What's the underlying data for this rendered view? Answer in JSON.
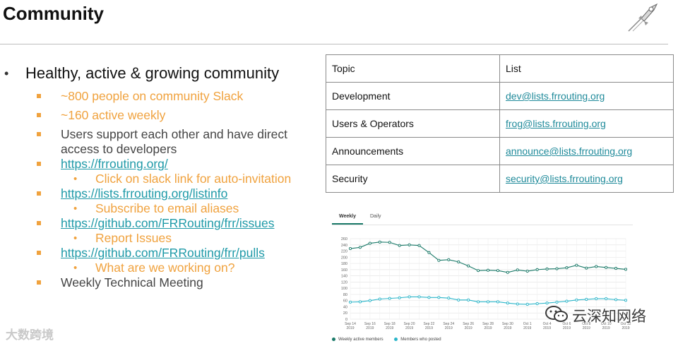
{
  "slide": {
    "title": "Community"
  },
  "bullets": {
    "main": "Healthy, active & growing community",
    "slack_people": "~800 people on community Slack",
    "active_weekly": "~160 active weekly",
    "support": "Users support each other and have direct access to developers",
    "site_link": "https://frrouting.org/",
    "site_sub": "Click on slack link for auto-invitation",
    "listinfo_link": "https://lists.frrouting.org/listinfo",
    "listinfo_sub": "Subscribe to email aliases",
    "issues_link": "https://github.com/FRRouting/frr/issues",
    "issues_sub": "Report Issues",
    "pulls_link": "https://github.com/FRRouting/frr/pulls",
    "pulls_sub": "What are we working on?",
    "meeting": "Weekly Technical Meeting"
  },
  "mailing_table": {
    "headers": [
      "Topic",
      "List"
    ],
    "rows": [
      {
        "topic": "Development",
        "list": "dev@lists.frrouting.org"
      },
      {
        "topic": "Users & Operators",
        "list": "frog@lists.frrouting.org"
      },
      {
        "topic": "Announcements",
        "list": "announce@lists.frrouting.org"
      },
      {
        "topic": "Security",
        "list": "security@lists.frrouting.org"
      }
    ]
  },
  "chart_tabs": {
    "weekly": "Weekly",
    "daily": "Daily"
  },
  "chart_data": {
    "type": "line",
    "x": [
      "Sep 14 2019",
      "Sep 15",
      "Sep 16 2019",
      "Sep 17",
      "Sep 18 2019",
      "Sep 19",
      "Sep 20 2019",
      "Sep 21",
      "Sep 22 2019",
      "Sep 23",
      "Sep 24 2019",
      "Sep 25",
      "Sep 26 2019",
      "Sep 27",
      "Sep 28 2019",
      "Sep 29",
      "Sep 30 2019",
      "Oct 1",
      "Oct 1 2019",
      "Oct 2",
      "Oct 4 2019",
      "Oct 5",
      "Oct 6 2019",
      "Oct 7",
      "Oct 8 2019",
      "Oct 9",
      "Oct 10 2019",
      "Oct 11",
      "Oct 12 2019"
    ],
    "x_tick_labels": [
      [
        "Sep 14",
        "2019"
      ],
      [
        "Sep 16",
        "2019"
      ],
      [
        "Sep 18",
        "2019"
      ],
      [
        "Sep 20",
        "2019"
      ],
      [
        "Sep 22",
        "2019"
      ],
      [
        "Sep 24",
        "2019"
      ],
      [
        "Sep 26",
        "2019"
      ],
      [
        "Sep 28",
        "2019"
      ],
      [
        "Sep 30",
        "2019"
      ],
      [
        "Oct 1",
        "2019"
      ],
      [
        "Oct 4",
        "2019"
      ],
      [
        "Oct 6",
        "2019"
      ],
      [
        "Oct 8",
        "2019"
      ],
      [
        "Oct 10",
        "2019"
      ],
      [
        "Oct 12",
        "2019"
      ]
    ],
    "y_ticks": [
      0,
      20,
      40,
      60,
      80,
      100,
      120,
      140,
      160,
      180,
      200,
      220,
      240,
      260
    ],
    "ylim": [
      0,
      260
    ],
    "grid": true,
    "legend_position": "bottom-left",
    "series": [
      {
        "name": "Weekly active members",
        "color": "#1b7a69",
        "values": [
          228,
          232,
          245,
          249,
          248,
          238,
          240,
          238,
          215,
          190,
          192,
          185,
          172,
          157,
          158,
          157,
          151,
          159,
          155,
          160,
          162,
          163,
          166,
          174,
          165,
          170,
          167,
          164,
          161
        ]
      },
      {
        "name": "Members who posted",
        "color": "#2bb5c9",
        "values": [
          55,
          56,
          60,
          65,
          67,
          69,
          72,
          72,
          70,
          70,
          68,
          62,
          62,
          56,
          56,
          56,
          52,
          49,
          48,
          50,
          52,
          55,
          58,
          62,
          64,
          66,
          66,
          63,
          61
        ]
      }
    ]
  },
  "watermarks": {
    "left": "大数跨境",
    "right": "云深知网络"
  },
  "colors": {
    "accent_orange": "#f0a23e",
    "link_teal": "#1f9aa8"
  }
}
